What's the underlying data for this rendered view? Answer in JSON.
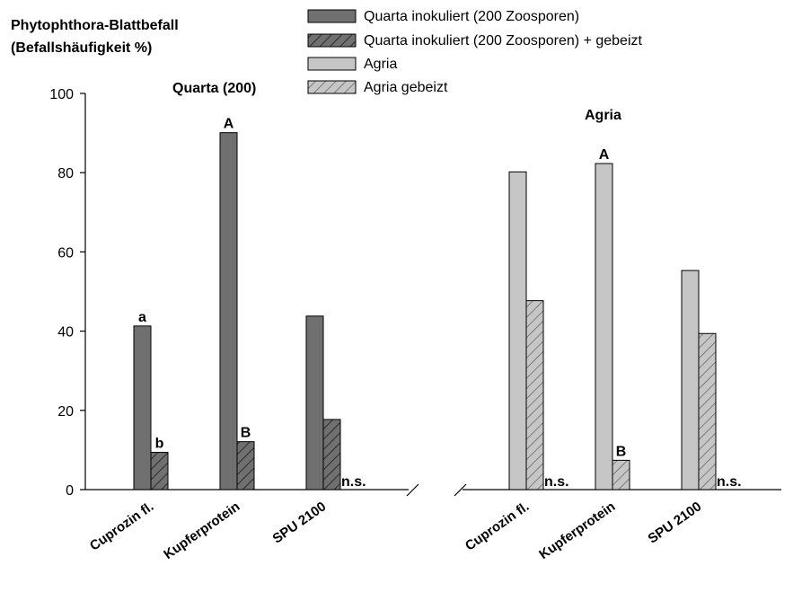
{
  "chart_data": {
    "type": "bar",
    "ylabel": [
      "Phytophthora-Blattbefall",
      "(Befallshäufigkeit %)"
    ],
    "ylim": [
      0,
      100
    ],
    "yticks": [
      "0",
      "20",
      "40",
      "60",
      "80",
      "100"
    ],
    "grid": false,
    "legend_placement": "top",
    "legend": [
      {
        "label": "Quarta inokuliert (200 Zoosporen)",
        "color": "#707070",
        "hatch": false
      },
      {
        "label": "Quarta inokuliert (200 Zoosporen) + gebeizt",
        "color": "#707070",
        "hatch": true
      },
      {
        "label": "Agria",
        "color": "#c6c6c6",
        "hatch": false
      },
      {
        "label": "Agria gebeizt",
        "color": "#c6c6c6",
        "hatch": true
      }
    ],
    "panels": [
      {
        "title": "Quarta (200)",
        "categories": [
          "Cuprozin fl.",
          "Kupferprotein",
          "SPU 2100"
        ],
        "series": [
          {
            "name": "Quarta inokuliert (200 Zoosporen)",
            "values": [
              41.3,
              90.1,
              43.8
            ],
            "labels": [
              "a",
              "A",
              ""
            ]
          },
          {
            "name": "Quarta inokuliert (200 Zoosporen) + gebeizt",
            "values": [
              9.4,
              12.1,
              17.7
            ],
            "labels": [
              "b",
              "B",
              "n.s."
            ]
          }
        ]
      },
      {
        "title": "Agria",
        "categories": [
          "Cuprozin fl.",
          "Kupferprotein",
          "SPU 2100"
        ],
        "series": [
          {
            "name": "Agria",
            "values": [
              80.2,
              82.3,
              55.3
            ],
            "labels": [
              "",
              "A",
              ""
            ]
          },
          {
            "name": "Agria gebeizt",
            "values": [
              47.7,
              7.4,
              39.4
            ],
            "labels": [
              "n.s.",
              "B",
              "n.s."
            ]
          }
        ]
      }
    ]
  }
}
